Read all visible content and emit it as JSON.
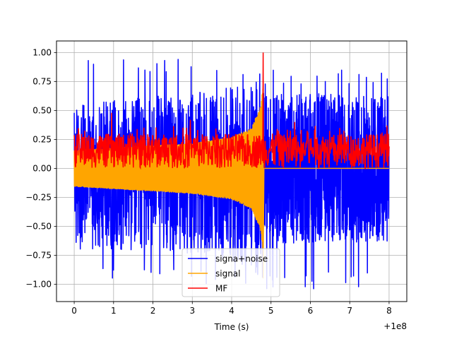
{
  "chart_data": {
    "type": "line",
    "title": "",
    "xlabel": "Time (s)",
    "ylabel": "",
    "x_offset_label": "+1e8",
    "xlim": [
      -0.45,
      8.45
    ],
    "ylim": [
      -1.15,
      1.1
    ],
    "grid": true,
    "x_ticks": [
      0,
      1,
      2,
      3,
      4,
      5,
      6,
      7,
      8
    ],
    "x_tick_labels": [
      "0",
      "1",
      "2",
      "3",
      "4",
      "5",
      "6",
      "7",
      "8"
    ],
    "y_ticks": [
      -1.0,
      -0.75,
      -0.5,
      -0.25,
      0.0,
      0.25,
      0.5,
      0.75,
      1.0
    ],
    "y_tick_labels": [
      "−1.00",
      "−0.75",
      "−0.50",
      "−0.25",
      "0.00",
      "0.25",
      "0.50",
      "0.75",
      "1.00"
    ],
    "legend_position": "lower-center",
    "series": [
      {
        "name": "signa+noise",
        "color": "#0000ff",
        "style": "noisy-band",
        "segments": [
          {
            "x_start": 0.0,
            "x_end": 4.8,
            "upper": [
              [
                0.0,
                0.55
              ],
              [
                1.0,
                0.6
              ],
              [
                2.0,
                0.62
              ],
              [
                3.0,
                0.65
              ],
              [
                4.0,
                0.7
              ],
              [
                4.8,
                0.8
              ]
            ],
            "lower": [
              [
                0.0,
                -0.7
              ],
              [
                1.0,
                -0.7
              ],
              [
                2.0,
                -0.72
              ],
              [
                3.0,
                -0.75
              ],
              [
                4.0,
                -0.8
              ],
              [
                4.8,
                -0.95
              ]
            ],
            "peak_max": 0.95,
            "peak_min": -1.0
          },
          {
            "x_start": 4.8,
            "x_end": 8.0,
            "upper": [
              [
                4.8,
                0.65
              ],
              [
                6.0,
                0.65
              ],
              [
                7.0,
                0.65
              ],
              [
                8.0,
                0.65
              ]
            ],
            "lower": [
              [
                4.8,
                -0.65
              ],
              [
                6.0,
                -0.65
              ],
              [
                7.0,
                -0.65
              ],
              [
                8.0,
                -0.65
              ]
            ],
            "peak_max": 0.85,
            "peak_min": -1.05
          }
        ]
      },
      {
        "name": "signal",
        "color": "#ffa500",
        "style": "chirp-envelope",
        "envelope": [
          [
            0.0,
            0.16
          ],
          [
            1.0,
            0.18
          ],
          [
            2.0,
            0.2
          ],
          [
            3.0,
            0.22
          ],
          [
            4.0,
            0.27
          ],
          [
            4.5,
            0.35
          ],
          [
            4.75,
            0.55
          ],
          [
            4.8,
            0.75
          ]
        ],
        "merger_time": 4.8,
        "post_merger_value": 0.0
      },
      {
        "name": "MF",
        "color": "#ff0000",
        "style": "noisy-band",
        "base_level": 0.12,
        "band_low": 0.0,
        "band_high": 0.3,
        "x_start": 0.0,
        "x_end": 8.0,
        "peak": {
          "x": 4.8,
          "y": 1.0
        },
        "spikes": [
          {
            "x": 0.95,
            "y": 0.48
          },
          {
            "x": 2.95,
            "y": 0.42
          },
          {
            "x": 5.6,
            "y": 0.4
          }
        ]
      }
    ]
  }
}
